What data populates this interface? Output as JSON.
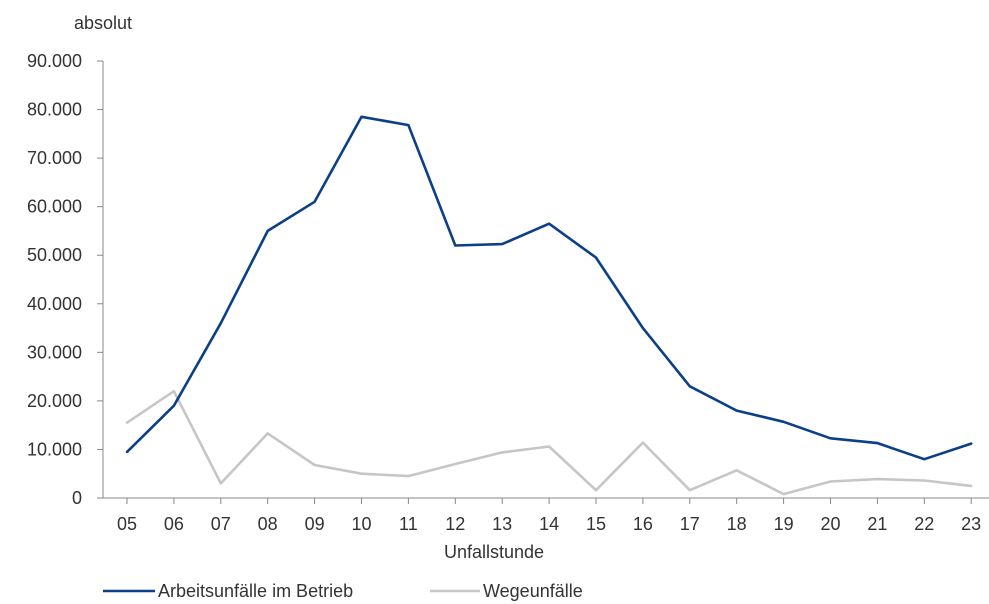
{
  "chart_data": {
    "type": "line",
    "title": "",
    "ylabel": "absolut",
    "xlabel": "Unfallstunde",
    "categories": [
      "05",
      "06",
      "07",
      "08",
      "09",
      "10",
      "11",
      "12",
      "13",
      "14",
      "15",
      "16",
      "17",
      "18",
      "19",
      "20",
      "21",
      "22",
      "23"
    ],
    "ylim": [
      0,
      90000
    ],
    "yticks": [
      0,
      10000,
      20000,
      30000,
      40000,
      50000,
      60000,
      70000,
      80000,
      90000
    ],
    "ytick_labels": [
      "0",
      "10.000",
      "20.000",
      "30.000",
      "40.000",
      "50.000",
      "60.000",
      "70.000",
      "80.000",
      "90.000"
    ],
    "grid": false,
    "legend_position": "bottom-left",
    "series": [
      {
        "name": "Arbeitsunfälle im Betrieb",
        "color": "#0b3f86",
        "values": [
          9500,
          19000,
          36000,
          55000,
          61000,
          78500,
          76800,
          52000,
          52300,
          56500,
          49500,
          35000,
          23000,
          18000,
          15700,
          12300,
          11300,
          8000,
          11200
        ]
      },
      {
        "name": "Wegeunfälle",
        "color": "#c6c6c6",
        "values": [
          15500,
          22000,
          3000,
          13300,
          6800,
          5000,
          4500,
          7000,
          9400,
          10600,
          1600,
          11400,
          1600,
          5700,
          800,
          3400,
          3900,
          3600,
          2500
        ]
      }
    ]
  }
}
